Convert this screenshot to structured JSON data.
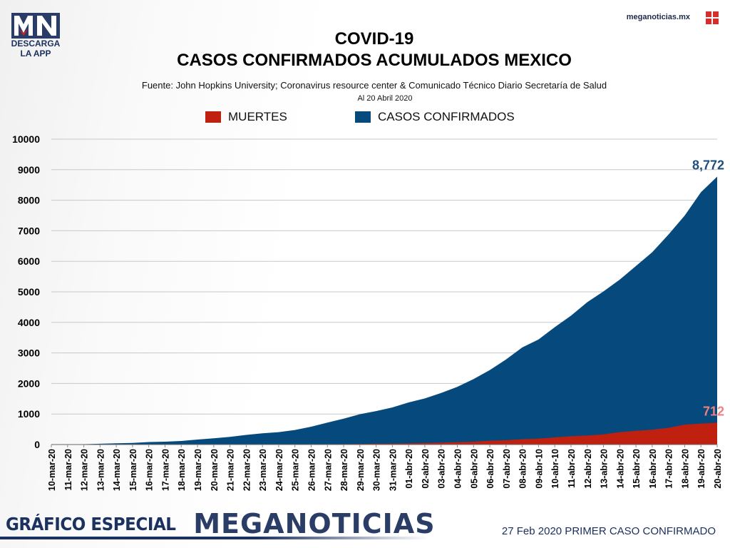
{
  "header": {
    "logo_text": "MN",
    "logo_cta": "DESCARGA LA APP",
    "site": "meganoticias.mx",
    "title_line1": "COVID-19",
    "title_line2": "CASOS CONFIRMADOS ACUMULADOS MEXICO",
    "source": "Fuente: John Hopkins University; Coronavirus resource center & Comunicado Técnico Diario Secretaría de Salud",
    "date": "Al 20 Abril 2020"
  },
  "legend": [
    {
      "label": "MUERTES",
      "color": "#c0200f"
    },
    {
      "label": "CASOS CONFIRMADOS",
      "color": "#064a7d"
    }
  ],
  "chart_data": {
    "type": "area",
    "ylim": [
      0,
      10000
    ],
    "yticks": [
      0,
      1000,
      2000,
      3000,
      4000,
      5000,
      6000,
      7000,
      8000,
      9000,
      10000
    ],
    "categories": [
      "10-mar-20",
      "11-mar-20",
      "12-mar-20",
      "13-mar-20",
      "14-mar-20",
      "15-mar-20",
      "16-mar-20",
      "17-mar-20",
      "18-mar-20",
      "19-mar-20",
      "20-mar-20",
      "21-mar-20",
      "22-mar-20",
      "23-mar-20",
      "24-mar-20",
      "25-mar-20",
      "26-mar-20",
      "27-mar-20",
      "28-mar-20",
      "29-mar-20",
      "30-mar-20",
      "31-mar-20",
      "01-abr-20",
      "02-abr-20",
      "03-abr-20",
      "04-abr-20",
      "05-abr-20",
      "06-abr-20",
      "07-abr-20",
      "08-abr-20",
      "09-abr-10",
      "10-abr-10",
      "11-abr-20",
      "12-abr-20",
      "13-abr-20",
      "14-abr-20",
      "15-abr-20",
      "16-abr-20",
      "17-abr-20",
      "18-abr-20",
      "19-abr-20",
      "20-abr-20"
    ],
    "series": [
      {
        "name": "CASOS CONFIRMADOS",
        "color": "#064a7d",
        "values": [
          7,
          7,
          12,
          26,
          41,
          53,
          82,
          93,
          118,
          164,
          203,
          251,
          316,
          367,
          405,
          475,
          585,
          717,
          848,
          993,
          1094,
          1215,
          1378,
          1510,
          1688,
          1890,
          2143,
          2439,
          2785,
          3181,
          3441,
          3844,
          4219,
          4661,
          5014,
          5399,
          5847,
          6297,
          6875,
          7497,
          8261,
          8772
        ]
      },
      {
        "name": "MUERTES",
        "color": "#c0200f",
        "values": [
          0,
          0,
          0,
          0,
          0,
          0,
          0,
          0,
          0,
          1,
          2,
          2,
          2,
          4,
          5,
          6,
          8,
          12,
          16,
          20,
          28,
          29,
          37,
          50,
          60,
          79,
          94,
          125,
          141,
          174,
          194,
          233,
          273,
          296,
          332,
          406,
          449,
          486,
          546,
          650,
          686,
          712
        ]
      }
    ],
    "annotations": [
      {
        "text": "8,772",
        "series": "CASOS CONFIRMADOS",
        "color": "#1d4e7c"
      },
      {
        "text": "712",
        "series": "MUERTES",
        "color": "#f08080"
      }
    ]
  },
  "footer": {
    "left_label": "GRÁFICO ESPECIAL",
    "brand": "MEGANOTICIAS",
    "right_text": "27 Feb 2020 PRIMER CASO CONFIRMADO"
  }
}
